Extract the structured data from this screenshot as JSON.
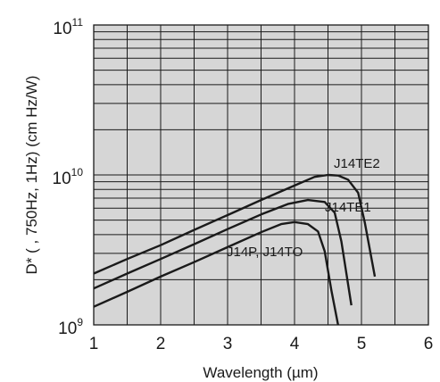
{
  "chart_data": {
    "type": "line",
    "xlabel": "Wavelength (µm)",
    "ylabel": "D* ( , 750Hz, 1Hz) (cm Hz/W)",
    "x_scale": "linear",
    "y_scale": "log",
    "xlim": [
      1,
      6
    ],
    "ylim": [
      1000000000.0,
      100000000000.0
    ],
    "x_ticks": [
      "1",
      "2",
      "3",
      "4",
      "5",
      "6"
    ],
    "y_ticks": [
      {
        "base": "10",
        "exp": "9"
      },
      {
        "base": "10",
        "exp": "10"
      },
      {
        "base": "10",
        "exp": "11"
      }
    ],
    "grid": true,
    "colors": {
      "background": "#d6d6d6",
      "grid": "#1a1a1a",
      "line": "#1a1a1a"
    },
    "series": [
      {
        "name": "J14TE2",
        "points": [
          [
            1.0,
            2200000000.0
          ],
          [
            1.5,
            2750000000.0
          ],
          [
            2.0,
            3400000000.0
          ],
          [
            2.5,
            4300000000.0
          ],
          [
            3.0,
            5400000000.0
          ],
          [
            3.5,
            6800000000.0
          ],
          [
            4.0,
            8500000000.0
          ],
          [
            4.3,
            9700000000.0
          ],
          [
            4.5,
            10000000000.0
          ],
          [
            4.65,
            9900000000.0
          ],
          [
            4.8,
            9300000000.0
          ],
          [
            4.95,
            7600000000.0
          ],
          [
            5.05,
            4800000000.0
          ],
          [
            5.2,
            2100000000.0
          ]
        ]
      },
      {
        "name": "J14TE1",
        "points": [
          [
            1.0,
            1750000000.0
          ],
          [
            1.5,
            2200000000.0
          ],
          [
            2.0,
            2750000000.0
          ],
          [
            2.5,
            3450000000.0
          ],
          [
            3.0,
            4350000000.0
          ],
          [
            3.5,
            5450000000.0
          ],
          [
            3.9,
            6400000000.0
          ],
          [
            4.2,
            6800000000.0
          ],
          [
            4.45,
            6600000000.0
          ],
          [
            4.6,
            5600000000.0
          ],
          [
            4.7,
            3600000000.0
          ],
          [
            4.85,
            1350000000.0
          ]
        ]
      },
      {
        "name": "J14P, J14TO",
        "points": [
          [
            1.0,
            1320000000.0
          ],
          [
            1.5,
            1660000000.0
          ],
          [
            2.0,
            2100000000.0
          ],
          [
            2.5,
            2620000000.0
          ],
          [
            3.0,
            3300000000.0
          ],
          [
            3.5,
            4150000000.0
          ],
          [
            3.8,
            4700000000.0
          ],
          [
            4.0,
            4850000000.0
          ],
          [
            4.2,
            4700000000.0
          ],
          [
            4.35,
            4200000000.0
          ],
          [
            4.45,
            3100000000.0
          ],
          [
            4.55,
            1700000000.0
          ],
          [
            4.65,
            1000000000.0
          ]
        ]
      }
    ],
    "annotations": [
      {
        "text": "J14TE2"
      },
      {
        "text": "J14TE1"
      },
      {
        "text": "J14P, J14TO"
      }
    ]
  }
}
